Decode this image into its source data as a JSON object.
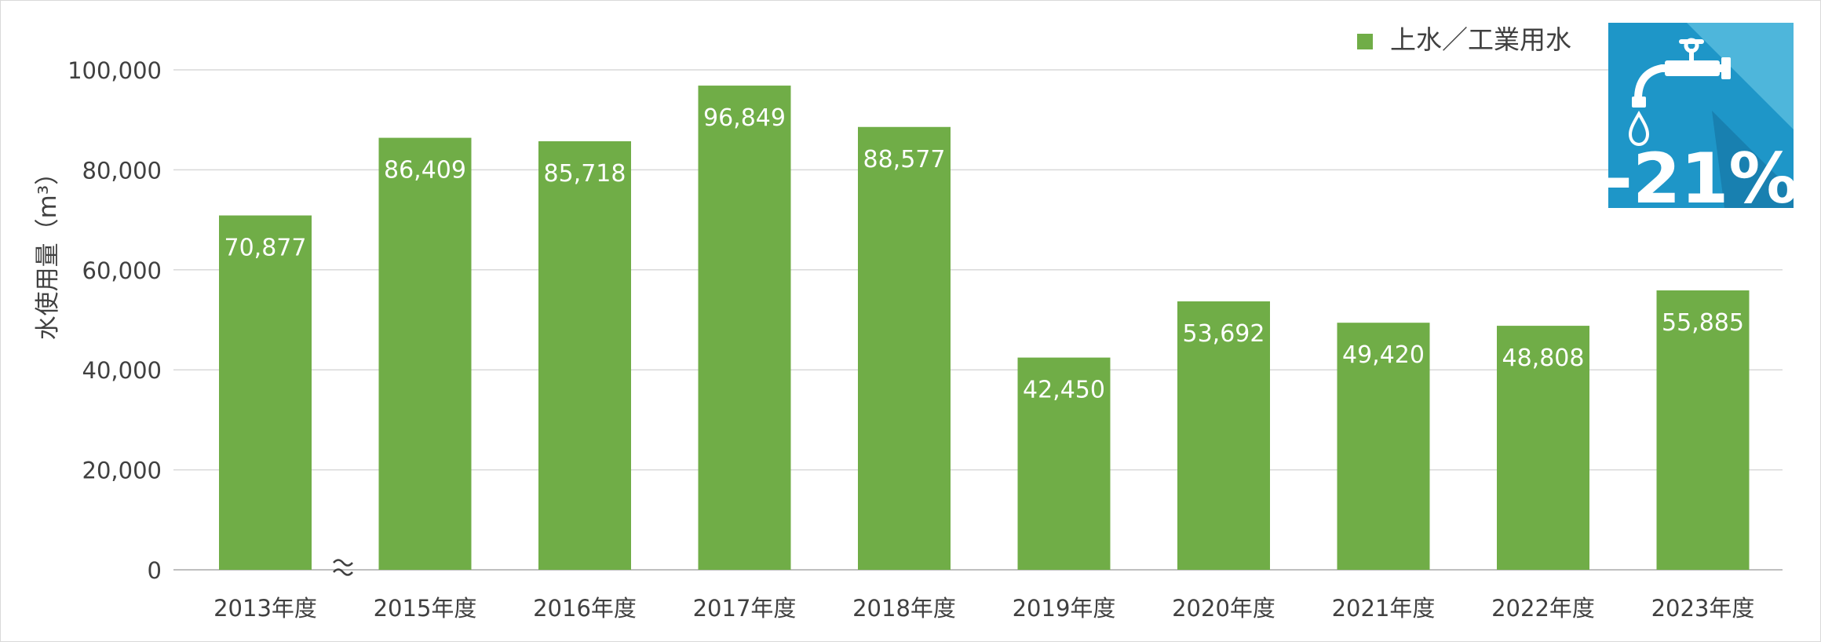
{
  "chart_data": {
    "type": "bar",
    "categories": [
      "2013年度",
      "2015年度",
      "2016年度",
      "2017年度",
      "2018年度",
      "2019年度",
      "2020年度",
      "2021年度",
      "2022年度",
      "2023年度"
    ],
    "series": [
      {
        "name": "上水／工業用水",
        "values": [
          70877,
          86409,
          85718,
          96849,
          88577,
          42450,
          53692,
          49420,
          48808,
          55885
        ]
      }
    ],
    "value_labels": [
      "70,877",
      "86,409",
      "85,718",
      "96,849",
      "88,577",
      "42,450",
      "53,692",
      "49,420",
      "48,808",
      "55,885"
    ],
    "y_ticks": [
      "0",
      "20,000",
      "40,000",
      "60,000",
      "80,000",
      "100,000"
    ],
    "ylabel": "水使用量（m³）",
    "ylim": [
      0,
      100000
    ],
    "grid": true,
    "legend_position": "top-right",
    "axis_break_after_category": "2013年度",
    "badge": {
      "text": "-21%",
      "icon": "water-faucet-icon"
    },
    "colors": {
      "bar": "#70AD47",
      "grid": "#D9D9D9",
      "badge_bg": "#1E96C8",
      "badge_shadow": "#1880B0"
    }
  }
}
